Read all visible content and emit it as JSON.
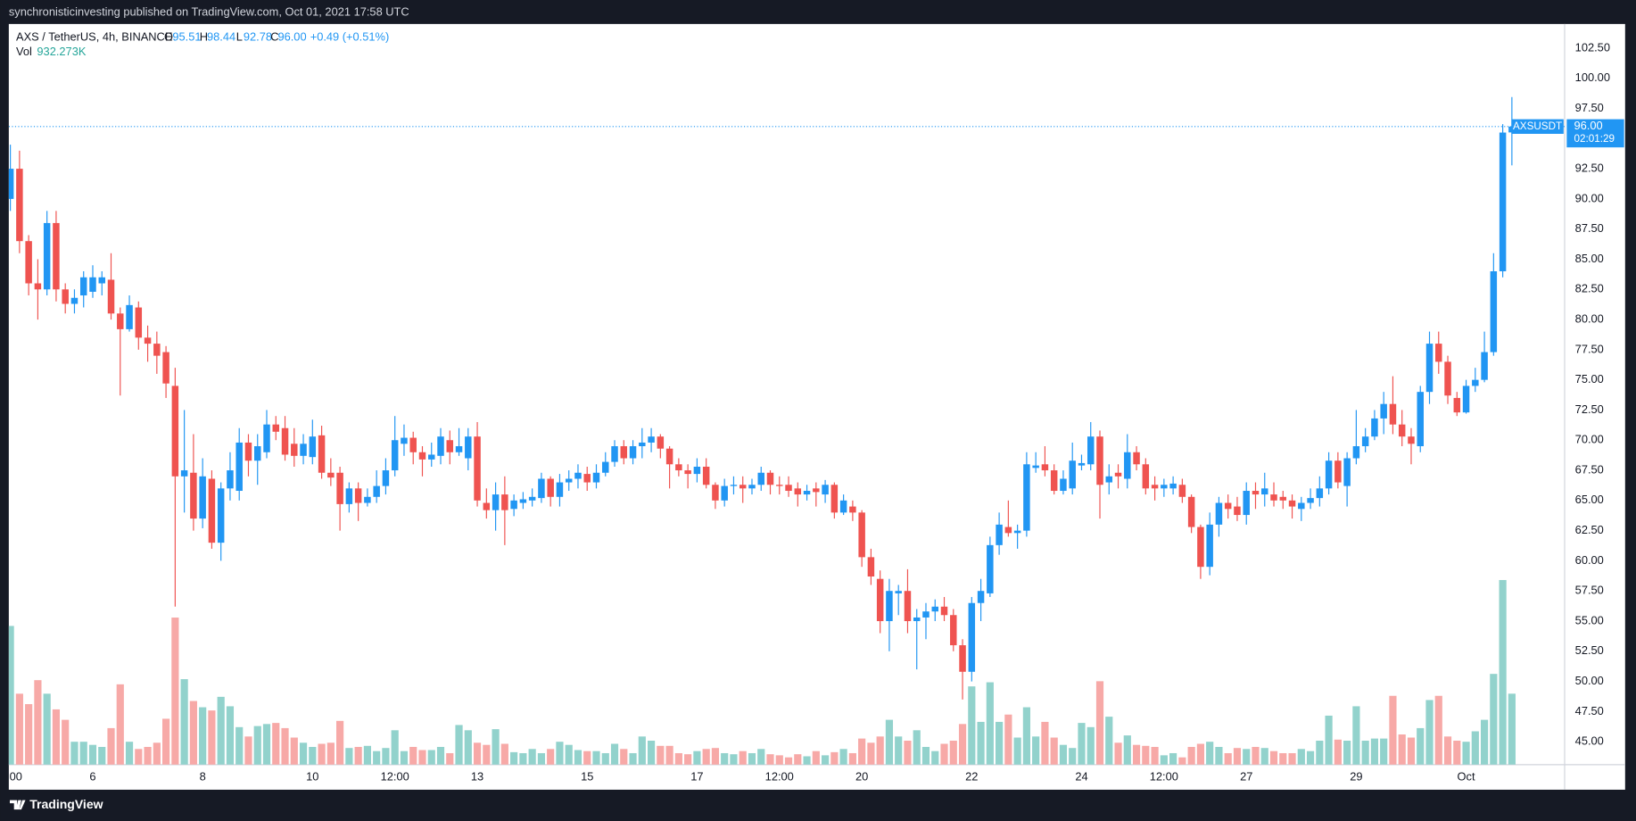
{
  "header": {
    "text": "synchronisticinvesting published on TradingView.com, Oct 01, 2021 17:58 UTC"
  },
  "footer": {
    "brand": "TradingView"
  },
  "chart_data": {
    "type": "candlestick",
    "legend": {
      "symbol": "AXS / TetherUS, 4h, BINANCE",
      "fields": [
        {
          "key": "O",
          "value": "95.51"
        },
        {
          "key": "H",
          "value": "98.44"
        },
        {
          "key": "L",
          "value": "92.78"
        },
        {
          "key": "C",
          "value": "96.00"
        }
      ],
      "change": "+0.49 (+0.51%)",
      "vol_key": "Vol",
      "vol_value": "932.273K"
    },
    "symbol_tag": "AXSUSDT",
    "last_price": {
      "value": 96,
      "label": "96.00"
    },
    "countdown": "02:01:29",
    "up_color": "#2196f3",
    "down_color": "#ef5350",
    "volume_up_color": "#92d2cc",
    "volume_down_color": "#f7a9a7",
    "grid": false,
    "ylim": [
      43.1,
      104.5
    ],
    "yticks": [
      {
        "value": 45,
        "label": "45.00"
      },
      {
        "value": 47.5,
        "label": "47.50"
      },
      {
        "value": 50,
        "label": "50.00"
      },
      {
        "value": 52.5,
        "label": "52.50"
      },
      {
        "value": 55,
        "label": "55.00"
      },
      {
        "value": 57.5,
        "label": "57.50"
      },
      {
        "value": 60,
        "label": "60.00"
      },
      {
        "value": 62.5,
        "label": "62.50"
      },
      {
        "value": 65,
        "label": "65.00"
      },
      {
        "value": 67.5,
        "label": "67.50"
      },
      {
        "value": 70,
        "label": "70.00"
      },
      {
        "value": 72.5,
        "label": "72.50"
      },
      {
        "value": 75,
        "label": "75.00"
      },
      {
        "value": 77.5,
        "label": "77.50"
      },
      {
        "value": 80,
        "label": "80.00"
      },
      {
        "value": 82.5,
        "label": "82.50"
      },
      {
        "value": 85,
        "label": "85.00"
      },
      {
        "value": 87.5,
        "label": "87.50"
      },
      {
        "value": 90,
        "label": "90.00"
      },
      {
        "value": 92.5,
        "label": "92.50"
      },
      {
        "value": 95,
        "label": "95.00"
      },
      {
        "value": 97.5,
        "label": "97.50"
      },
      {
        "value": 100,
        "label": "100.00"
      },
      {
        "value": 102.5,
        "label": "102.50"
      }
    ],
    "xticks": [
      {
        "value": 0.6,
        "label": "00"
      },
      {
        "value": 9,
        "label": "6"
      },
      {
        "value": 21,
        "label": "8"
      },
      {
        "value": 33,
        "label": "10"
      },
      {
        "value": 42,
        "label": "12:00"
      },
      {
        "value": 51,
        "label": "13"
      },
      {
        "value": 63,
        "label": "15"
      },
      {
        "value": 75,
        "label": "17"
      },
      {
        "value": 84,
        "label": "12:00"
      },
      {
        "value": 93,
        "label": "20"
      },
      {
        "value": 105,
        "label": "22"
      },
      {
        "value": 117,
        "label": "24"
      },
      {
        "value": 126,
        "label": "12:00"
      },
      {
        "value": 135,
        "label": "27"
      },
      {
        "value": 147,
        "label": "29"
      },
      {
        "value": 159,
        "label": "Oct"
      }
    ],
    "candles": [
      [
        90,
        94.5,
        89,
        92.5,
        1822
      ],
      [
        92.5,
        94,
        85.5,
        86.5,
        932
      ],
      [
        86.5,
        87,
        82,
        83,
        795
      ],
      [
        83,
        85,
        80,
        82.5,
        1110
      ],
      [
        82.5,
        89,
        82,
        88,
        932
      ],
      [
        88,
        89,
        81.5,
        82.5,
        726
      ],
      [
        82.5,
        83,
        80.5,
        81.3,
        589
      ],
      [
        81.3,
        82.5,
        80.5,
        81.8,
        301
      ],
      [
        82,
        84,
        81,
        83.5,
        301
      ],
      [
        82.3,
        84.5,
        81.8,
        83.5,
        260
      ],
      [
        83,
        84,
        82,
        83.5,
        233
      ],
      [
        83.3,
        85.5,
        80,
        80.5,
        480
      ],
      [
        80.5,
        81,
        73.7,
        79.2,
        1055
      ],
      [
        79.2,
        82,
        79,
        81.2,
        301
      ],
      [
        81,
        81.5,
        77.5,
        78.5,
        206
      ],
      [
        78.5,
        79.5,
        76.5,
        78,
        233
      ],
      [
        78,
        79,
        75.5,
        77,
        288
      ],
      [
        77.3,
        77.8,
        73.5,
        74.7,
        603
      ],
      [
        74.5,
        76,
        56.2,
        67,
        1932
      ],
      [
        67,
        72.5,
        64,
        67.5,
        1123
      ],
      [
        67.3,
        70.5,
        62.5,
        63.5,
        836
      ],
      [
        63.5,
        68.5,
        62.7,
        67,
        754
      ],
      [
        66.8,
        67.5,
        61,
        61.5,
        712
      ],
      [
        61.5,
        66.5,
        60,
        66,
        891
      ],
      [
        66,
        69,
        65,
        67.5,
        767
      ],
      [
        65.8,
        71,
        65,
        69.8,
        493
      ],
      [
        69.8,
        70.5,
        67,
        68.3,
        370
      ],
      [
        68.3,
        70.5,
        66.3,
        69.5,
        507
      ],
      [
        69,
        72.5,
        68.5,
        71.3,
        534
      ],
      [
        71.3,
        72,
        70,
        70.7,
        548
      ],
      [
        71,
        72,
        68.3,
        68.8,
        480
      ],
      [
        69.7,
        71,
        67.8,
        68.7,
        356
      ],
      [
        68.7,
        70.5,
        68,
        69.7,
        288
      ],
      [
        68.6,
        71.7,
        68,
        70.3,
        233
      ],
      [
        70.4,
        71.2,
        66.8,
        67.3,
        274
      ],
      [
        67.3,
        68.5,
        66.2,
        66.9,
        288
      ],
      [
        67.3,
        67.8,
        62.5,
        64.7,
        575
      ],
      [
        64.7,
        66.5,
        64,
        66,
        219
      ],
      [
        66,
        66.5,
        63.3,
        64.8,
        233
      ],
      [
        64.8,
        66,
        64.5,
        65.3,
        247
      ],
      [
        65.3,
        67.5,
        64.8,
        66.2,
        178
      ],
      [
        66.2,
        68.5,
        65.5,
        67.5,
        219
      ],
      [
        67.5,
        72,
        67,
        70,
        452
      ],
      [
        69.7,
        71.3,
        68.7,
        70.2,
        178
      ],
      [
        70.2,
        70.7,
        68,
        69,
        233
      ],
      [
        69,
        69.5,
        67,
        68.4,
        192
      ],
      [
        68.4,
        69.8,
        67.8,
        68.8,
        192
      ],
      [
        68.7,
        71,
        68,
        70.3,
        233
      ],
      [
        70,
        70.8,
        68,
        69,
        151
      ],
      [
        69,
        71,
        68.7,
        69.5,
        521
      ],
      [
        68.5,
        71,
        67.5,
        70.3,
        452
      ],
      [
        70.3,
        71.5,
        64.5,
        65,
        288
      ],
      [
        64.8,
        66,
        63.5,
        64.2,
        260
      ],
      [
        64.2,
        66.5,
        62.5,
        65.5,
        466
      ],
      [
        65.5,
        67,
        61.3,
        64.2,
        274
      ],
      [
        64.3,
        65.5,
        63.7,
        65,
        164
      ],
      [
        64.8,
        65.7,
        64.3,
        65.1,
        151
      ],
      [
        65,
        66,
        64.5,
        65.3,
        206
      ],
      [
        65.2,
        67.3,
        64.8,
        66.8,
        151
      ],
      [
        66.8,
        67,
        64.5,
        65.3,
        206
      ],
      [
        65.3,
        67.2,
        64.5,
        66.5,
        301
      ],
      [
        66.5,
        67.5,
        65.8,
        66.8,
        260
      ],
      [
        66.8,
        68,
        66,
        67.3,
        192
      ],
      [
        67.2,
        67.8,
        65.8,
        66.5,
        178
      ],
      [
        66.5,
        68,
        66,
        67.3,
        178
      ],
      [
        67.3,
        69,
        67,
        68.2,
        151
      ],
      [
        68.2,
        70,
        67.8,
        69.5,
        274
      ],
      [
        69.5,
        70,
        68,
        68.5,
        206
      ],
      [
        68.5,
        70,
        68,
        69.5,
        151
      ],
      [
        69.5,
        71,
        68.5,
        69.8,
        370
      ],
      [
        69.8,
        71,
        69,
        70.3,
        315
      ],
      [
        70.3,
        70.5,
        68.5,
        69.3,
        247
      ],
      [
        69.3,
        69.5,
        66,
        68,
        247
      ],
      [
        68,
        68.5,
        67,
        67.5,
        151
      ],
      [
        67.5,
        68,
        66,
        67.2,
        137
      ],
      [
        67.2,
        68.5,
        66.5,
        67.8,
        178
      ],
      [
        67.8,
        68.5,
        66,
        66.3,
        206
      ],
      [
        66.3,
        66.5,
        64.3,
        65,
        219
      ],
      [
        65,
        66.8,
        64.5,
        66.2,
        151
      ],
      [
        66.2,
        67,
        65.5,
        66.3,
        137
      ],
      [
        66.3,
        67,
        64.8,
        66,
        178
      ],
      [
        66,
        66.8,
        65.5,
        66.3,
        151
      ],
      [
        66.3,
        67.8,
        65.8,
        67.3,
        206
      ],
      [
        67.3,
        67.5,
        65.5,
        66.3,
        137
      ],
      [
        66.3,
        67,
        65.5,
        66.2,
        123
      ],
      [
        66.3,
        67,
        65.3,
        65.8,
        96
      ],
      [
        66,
        66.5,
        64.5,
        65.5,
        137
      ],
      [
        65.5,
        66.3,
        65,
        65.8,
        110
      ],
      [
        66,
        66.5,
        64.5,
        65.7,
        178
      ],
      [
        65.5,
        66.7,
        64.8,
        66.3,
        123
      ],
      [
        66.3,
        66.5,
        63.5,
        64,
        164
      ],
      [
        64,
        65.5,
        63.8,
        65,
        206
      ],
      [
        64.5,
        65,
        63.3,
        64,
        151
      ],
      [
        64,
        64.2,
        59.5,
        60.3,
        343
      ],
      [
        60.3,
        61,
        58,
        58.7,
        288
      ],
      [
        58.5,
        59.2,
        54,
        55,
        370
      ],
      [
        55,
        58.5,
        52.5,
        57.5,
        589
      ],
      [
        57.3,
        58,
        55.5,
        57.5,
        370
      ],
      [
        57.5,
        59.3,
        54,
        55,
        315
      ],
      [
        55,
        56,
        51,
        55.3,
        452
      ],
      [
        55.3,
        56.5,
        53.5,
        55.8,
        233
      ],
      [
        55.8,
        56.8,
        55,
        56.2,
        178
      ],
      [
        56.2,
        57,
        55,
        55.5,
        274
      ],
      [
        55.5,
        56,
        52.5,
        53,
        315
      ],
      [
        53,
        53.5,
        48.5,
        50.8,
        534
      ],
      [
        50.8,
        57,
        50,
        56.5,
        1028
      ],
      [
        56.5,
        58.5,
        55,
        57.5,
        562
      ],
      [
        57.3,
        62,
        57,
        61.3,
        1082
      ],
      [
        61.3,
        64,
        60.5,
        63,
        562
      ],
      [
        62.8,
        65,
        62,
        62.3,
        658
      ],
      [
        62.3,
        63,
        61,
        62.5,
        356
      ],
      [
        62.5,
        69,
        62,
        68,
        754
      ],
      [
        67.7,
        69,
        67.3,
        67.9,
        370
      ],
      [
        68,
        69.5,
        67,
        67.5,
        562
      ],
      [
        67.5,
        68,
        65.5,
        65.8,
        356
      ],
      [
        65.8,
        67.5,
        65.5,
        66.8,
        260
      ],
      [
        66,
        69.8,
        65.5,
        68.3,
        219
      ],
      [
        67.9,
        68.8,
        67.5,
        68.1,
        548
      ],
      [
        68,
        71.5,
        67.5,
        70.3,
        493
      ],
      [
        70.3,
        70.8,
        63.5,
        66.3,
        1096
      ],
      [
        66.5,
        68,
        65.5,
        67,
        630
      ],
      [
        67.3,
        68,
        66,
        67,
        288
      ],
      [
        66.8,
        70.5,
        66,
        69,
        384
      ],
      [
        69,
        69.5,
        67.5,
        68,
        260
      ],
      [
        68,
        68.5,
        65.5,
        66,
        247
      ],
      [
        66.3,
        67,
        65,
        66,
        233
      ],
      [
        66,
        66.8,
        65.3,
        66.3,
        123
      ],
      [
        66,
        67,
        65.5,
        66.4,
        151
      ],
      [
        66.3,
        66.8,
        64.8,
        65.3,
        96
      ],
      [
        65.3,
        65.5,
        62.3,
        62.8,
        233
      ],
      [
        62.8,
        63,
        58.5,
        59.5,
        274
      ],
      [
        59.5,
        64,
        58.8,
        63,
        301
      ],
      [
        63,
        65.3,
        62,
        64.8,
        233
      ],
      [
        64.8,
        65.5,
        63.5,
        64.3,
        151
      ],
      [
        64.5,
        65.3,
        63.3,
        63.8,
        219
      ],
      [
        63.8,
        66.5,
        63,
        65.8,
        206
      ],
      [
        65.8,
        66.5,
        64.3,
        65.5,
        233
      ],
      [
        65.5,
        67.3,
        64.5,
        66,
        219
      ],
      [
        65.5,
        66.5,
        64.5,
        65,
        178
      ],
      [
        65.3,
        65.8,
        64.3,
        65,
        151
      ],
      [
        65,
        65.5,
        63.5,
        64.5,
        151
      ],
      [
        64.3,
        65.3,
        63.3,
        64.8,
        206
      ],
      [
        64.8,
        66,
        64.3,
        65.2,
        178
      ],
      [
        65.2,
        67,
        64.5,
        66,
        315
      ],
      [
        66,
        69,
        65.5,
        68.3,
        644
      ],
      [
        68.3,
        69,
        66,
        66.5,
        329
      ],
      [
        66.2,
        69,
        64.5,
        68.5,
        315
      ],
      [
        68.5,
        72.5,
        68,
        69.5,
        767
      ],
      [
        69.5,
        71,
        69,
        70.3,
        315
      ],
      [
        70.3,
        72.5,
        70,
        71.8,
        343
      ],
      [
        71.8,
        74,
        70.5,
        73,
        343
      ],
      [
        73,
        75.3,
        70.5,
        71.3,
        904
      ],
      [
        71.3,
        72.5,
        69.5,
        70.3,
        397
      ],
      [
        70.3,
        71,
        68,
        69.7,
        356
      ],
      [
        69.5,
        74.5,
        69,
        74,
        480
      ],
      [
        74,
        79,
        73,
        78,
        849
      ],
      [
        78,
        79,
        75.5,
        76.5,
        904
      ],
      [
        76.5,
        77,
        73,
        73.7,
        370
      ],
      [
        73.5,
        74,
        72,
        72.3,
        315
      ],
      [
        72.3,
        75,
        72.2,
        74.5,
        301
      ],
      [
        74.5,
        76,
        74,
        75,
        438
      ],
      [
        75,
        79,
        74.8,
        77.3,
        589
      ],
      [
        77.3,
        85.5,
        77,
        84,
        1192
      ],
      [
        84,
        96.2,
        83.5,
        95.5,
        2425
      ],
      [
        95.51,
        98.44,
        92.78,
        96,
        932.273
      ]
    ]
  }
}
